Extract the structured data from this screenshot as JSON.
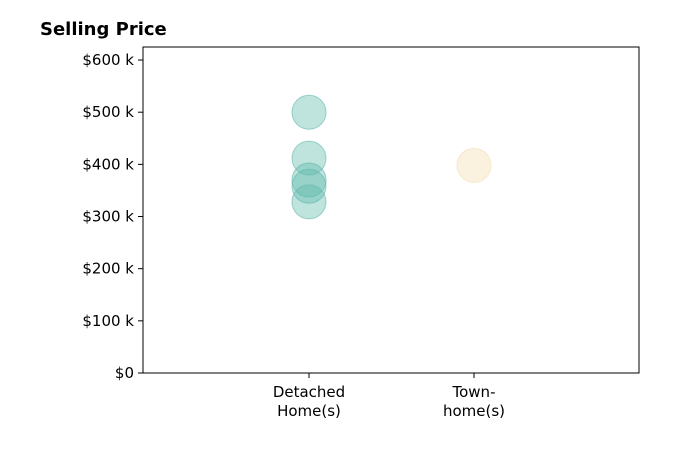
{
  "chart_data": {
    "type": "scatter",
    "title": "Selling Price",
    "xlabel": "",
    "ylabel": "",
    "categories": [
      "Detached\nHome(s)",
      "Town-\nhome(s)"
    ],
    "y_ticks": [
      "$0",
      "$100 k",
      "$200 k",
      "$300 k",
      "$400 k",
      "$500 k",
      "$600 k"
    ],
    "ylim": [
      0,
      625000
    ],
    "grid": false,
    "series": [
      {
        "category": "Detached\nHome(s)",
        "color": "#5fb8ab",
        "values": [
          500000,
          412000,
          370000,
          358000,
          328000
        ]
      },
      {
        "category": "Town-\nhome(s)",
        "color": "#f2deb0",
        "values": [
          398000
        ]
      }
    ]
  }
}
